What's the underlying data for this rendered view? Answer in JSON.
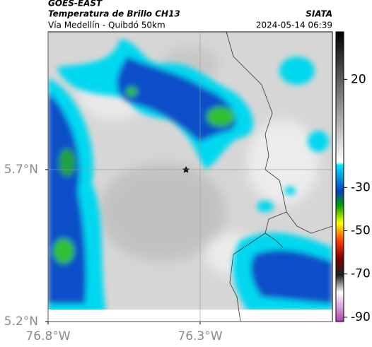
{
  "header": {
    "source": "GOES-EAST",
    "title": "Temperatura de Brillo CH13",
    "brand": "SIATA",
    "subtitle": "Vía Medellín - Quibdó 50km",
    "timestamp": "2024-05-14 06:39"
  },
  "map": {
    "xlim": [
      -76.8,
      -75.865
    ],
    "ylim": [
      5.2,
      6.153
    ],
    "xticks": [
      {
        "value": -76.8,
        "label": "76.8°W"
      },
      {
        "value": -76.3,
        "label": "76.3°W"
      }
    ],
    "yticks": [
      {
        "value": 5.2,
        "label": "5.2°N"
      },
      {
        "value": 5.7,
        "label": "5.7°N"
      }
    ],
    "grid": true
  },
  "colorbar": {
    "clim": [
      -92,
      42
    ],
    "ticks": [
      20,
      -30,
      -50,
      -70,
      -90
    ]
  }
}
